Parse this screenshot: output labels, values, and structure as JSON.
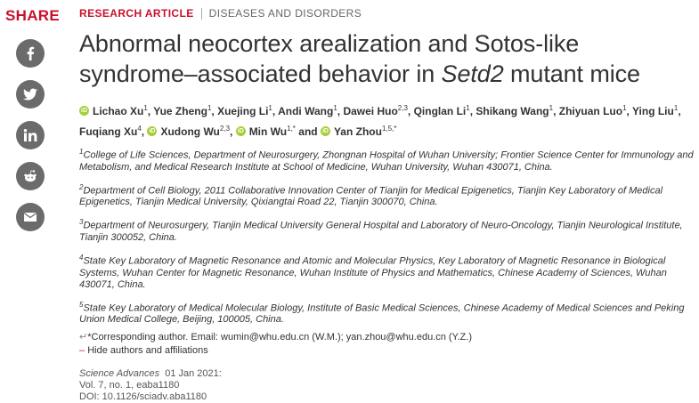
{
  "share": {
    "title": "SHARE",
    "icons": [
      "facebook-icon",
      "twitter-icon",
      "linkedin-icon",
      "reddit-icon",
      "email-icon"
    ]
  },
  "article": {
    "type": "RESEARCH ARTICLE",
    "category": "DISEASES AND DISORDERS",
    "title_part1": "Abnormal neocortex arealization and Sotos-like syndrome–associated behavior in ",
    "title_italic": "Setd2",
    "title_part2": " mutant mice"
  },
  "authors": [
    {
      "name": "Lichao Xu",
      "sup": "1",
      "orcid": true
    },
    {
      "name": "Yue Zheng",
      "sup": "1",
      "orcid": false
    },
    {
      "name": "Xuejing Li",
      "sup": "1",
      "orcid": false
    },
    {
      "name": "Andi Wang",
      "sup": "1",
      "orcid": false
    },
    {
      "name": "Dawei Huo",
      "sup": "2,3",
      "orcid": false
    },
    {
      "name": "Qinglan Li",
      "sup": "1",
      "orcid": false
    },
    {
      "name": "Shikang Wang",
      "sup": "1",
      "orcid": false
    },
    {
      "name": "Zhiyuan Luo",
      "sup": "1",
      "orcid": false
    },
    {
      "name": "Ying Liu",
      "sup": "1",
      "orcid": false
    },
    {
      "name": "Fuqiang Xu",
      "sup": "4",
      "orcid": false
    },
    {
      "name": "Xudong Wu",
      "sup": "2,3",
      "orcid": true
    },
    {
      "name": "Min Wu",
      "sup": "1,*",
      "orcid": true
    },
    {
      "name": "Yan Zhou",
      "sup": "1,5,*",
      "orcid": true
    }
  ],
  "and_text": "and",
  "affiliations": [
    {
      "num": "1",
      "text": "College of Life Sciences, Department of Neurosurgery, Zhongnan Hospital of Wuhan University; Frontier Science Center for Immunology and Metabolism, and Medical Research Institute at School of Medicine, Wuhan University, Wuhan 430071, China."
    },
    {
      "num": "2",
      "text": "Department of Cell Biology, 2011 Collaborative Innovation Center of Tianjin for Medical Epigenetics, Tianjin Key Laboratory of Medical Epigenetics, Tianjin Medical University, Qixiangtai Road 22, Tianjin 300070, China."
    },
    {
      "num": "3",
      "text": "Department of Neurosurgery, Tianjin Medical University General Hospital and Laboratory of Neuro-Oncology, Tianjin Neurological Institute, Tianjin 300052, China."
    },
    {
      "num": "4",
      "text": "State Key Laboratory of Magnetic Resonance and Atomic and Molecular Physics, Key Laboratory of Magnetic Resonance in Biological Systems, Wuhan Center for Magnetic Resonance, Wuhan Institute of Physics and Mathematics, Chinese Academy of Sciences, Wuhan 430071, China."
    },
    {
      "num": "5",
      "text": "State Key Laboratory of Medical Molecular Biology, Institute of Basic Medical Sciences, Chinese Academy of Medical Sciences and Peking Union Medical College, Beijing, 100005, China."
    }
  ],
  "corresponding": {
    "arrow": "↵",
    "text": "*Corresponding author. Email: wumin@whu.edu.cn (W.M.); yan.zhou@whu.edu.cn (Y.Z.)"
  },
  "toggle": {
    "minus": "–",
    "label": "Hide authors and affiliations"
  },
  "meta": {
    "journal": "Science Advances",
    "date": "01 Jan 2021:",
    "volume": "Vol. 7, no. 1, eaba1180",
    "doi": "DOI: 10.1126/sciadv.aba1180"
  },
  "colors": {
    "accent": "#c8102e",
    "orcid": "#a6ce39",
    "share_btn": "#6b6b6b"
  }
}
